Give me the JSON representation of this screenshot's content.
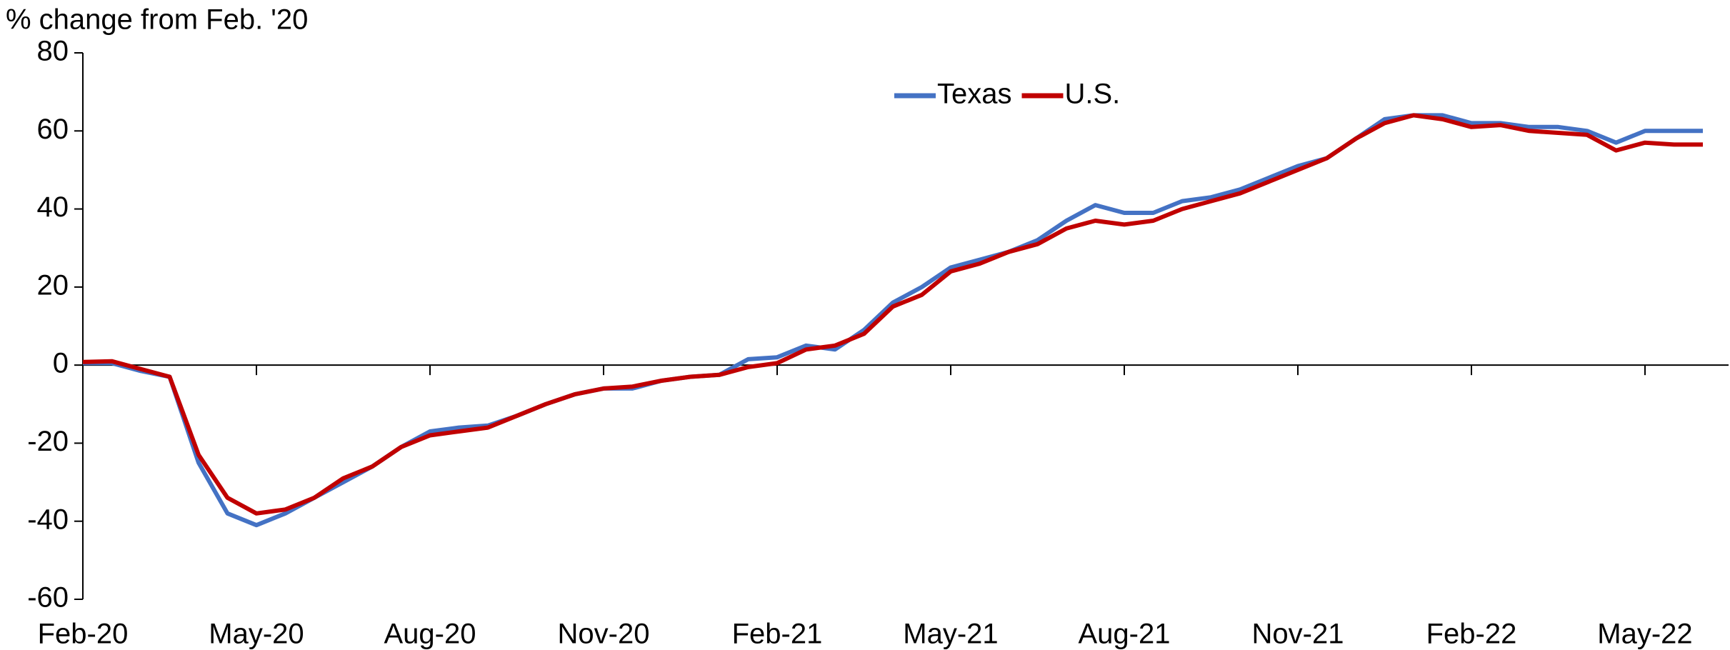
{
  "chart_data": {
    "type": "line",
    "y_label": "% change from Feb. '20",
    "categories": [
      "Feb-20",
      null,
      null,
      null,
      null,
      null,
      "May-20",
      null,
      null,
      null,
      null,
      null,
      "Aug-20",
      null,
      null,
      null,
      null,
      null,
      "Nov-20",
      null,
      null,
      null,
      null,
      null,
      "Feb-21",
      null,
      null,
      null,
      null,
      null,
      "May-21",
      null,
      null,
      null,
      null,
      null,
      "Aug-21",
      null,
      null,
      null,
      null,
      null,
      "Nov-21",
      null,
      null,
      null,
      null,
      null,
      "Feb-22",
      null,
      null,
      null,
      null,
      null,
      "May-22",
      null,
      null
    ],
    "series": [
      {
        "name": "Texas",
        "color": "#4472c4",
        "values": [
          0.5,
          0.5,
          -1.5,
          -3,
          -25,
          -38,
          -41,
          -38,
          -34,
          -30,
          -26,
          -21,
          -17,
          -16,
          -15.5,
          -13,
          -10,
          -7.5,
          -6,
          -6,
          -4,
          -3,
          -2.5,
          1.5,
          2,
          5,
          4,
          9,
          16,
          20,
          25,
          27,
          29,
          32,
          37,
          41,
          39,
          39,
          42,
          43,
          45,
          48,
          51,
          53,
          58,
          63,
          64,
          64,
          62,
          62,
          61,
          61,
          60,
          57,
          60,
          60,
          60
        ]
      },
      {
        "name": "U.S.",
        "color": "#c00000",
        "values": [
          0.8,
          1,
          -1,
          -3,
          -23,
          -34,
          -38,
          -37,
          -34,
          -29,
          -26,
          -21,
          -18,
          -17,
          -16,
          -13,
          -10,
          -7.5,
          -6,
          -5.5,
          -4,
          -3,
          -2.5,
          -0.5,
          0.5,
          4,
          5,
          8,
          15,
          18,
          24,
          26,
          29,
          31,
          35,
          37,
          36,
          37,
          40,
          42,
          44,
          47,
          50,
          53,
          58,
          62,
          64,
          63,
          61,
          61.5,
          60,
          59.5,
          59,
          55,
          57,
          56.5,
          56.5
        ]
      }
    ],
    "ylim": [
      -60,
      80
    ],
    "yticks": [
      -60,
      -40,
      -20,
      0,
      20,
      40,
      60,
      80
    ],
    "legend": "upper center",
    "grid": false
  }
}
